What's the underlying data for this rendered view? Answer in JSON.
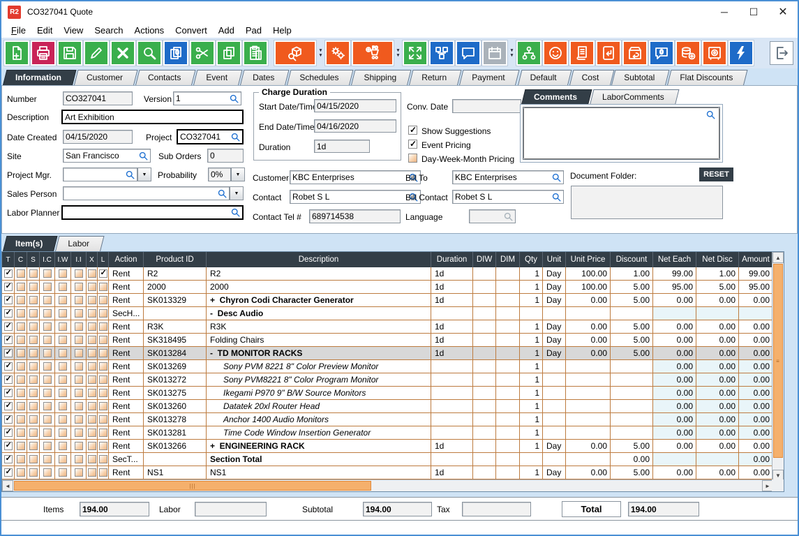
{
  "window": {
    "app_badge": "R2",
    "title": "CO327041 Quote"
  },
  "menu": {
    "items": [
      "File",
      "Edit",
      "View",
      "Search",
      "Actions",
      "Convert",
      "Add",
      "Pad",
      "Help"
    ]
  },
  "palette": {
    "green": "#3aaf4c",
    "red": "#c92458",
    "blue": "#1e6bc8",
    "orange": "#f05a1e",
    "gray": "#aab2ba",
    "header_dark": "#333e47",
    "grid_line": "#bd7b3f",
    "scroll_thumb": "#f5b06c",
    "tint_blue": "#e9f5f9",
    "selected_gray": "#d8d8d8",
    "window_border": "#4a90d5"
  },
  "toolbar": {
    "buttons": [
      {
        "icon": "new-document",
        "color": "green"
      },
      {
        "icon": "print",
        "color": "red"
      },
      {
        "icon": "save",
        "color": "green"
      },
      {
        "icon": "edit-pencil",
        "color": "green"
      },
      {
        "icon": "delete-x",
        "color": "green"
      },
      {
        "icon": "search",
        "color": "green"
      },
      {
        "icon": "copy-special",
        "color": "blue"
      },
      {
        "icon": "cut-scissors",
        "color": "green"
      },
      {
        "icon": "copy",
        "color": "green"
      },
      {
        "icon": "paste",
        "color": "green",
        "gap_after": true
      },
      {
        "icon": "search-product",
        "color": "orange",
        "wide": true,
        "dropdown_after": true
      },
      {
        "icon": "settings-gears",
        "color": "orange"
      },
      {
        "icon": "add-po-cart",
        "color": "orange",
        "wide": true,
        "dropdown_after": true
      },
      {
        "icon": "expand-arrows",
        "color": "green"
      },
      {
        "icon": "workflow",
        "color": "blue"
      },
      {
        "icon": "comment-bubble",
        "color": "blue"
      },
      {
        "icon": "calendar",
        "color": "gray",
        "disabled": true,
        "dropdown_after": true
      },
      {
        "icon": "hierarchy",
        "color": "green"
      },
      {
        "icon": "smiley",
        "color": "orange"
      },
      {
        "icon": "document-list",
        "color": "orange"
      },
      {
        "icon": "return-document",
        "color": "orange"
      },
      {
        "icon": "box-return",
        "color": "orange"
      },
      {
        "icon": "comment-zero",
        "color": "blue"
      },
      {
        "icon": "coins-add",
        "color": "orange"
      },
      {
        "icon": "safe-vault",
        "color": "orange"
      },
      {
        "icon": "lightning-bolt",
        "color": "blue"
      }
    ],
    "exit_icon": "exit-door"
  },
  "tabs": {
    "items": [
      "Information",
      "Customer",
      "Contacts",
      "Event",
      "Dates",
      "Schedules",
      "Shipping",
      "Return",
      "Payment",
      "Default",
      "Cost",
      "Subtotal",
      "Flat Discounts"
    ],
    "active": "Information"
  },
  "form": {
    "number": {
      "label": "Number",
      "value": "CO327041"
    },
    "version": {
      "label": "Version",
      "value": "1"
    },
    "description": {
      "label": "Description",
      "value": "Art Exhibition"
    },
    "date_created": {
      "label": "Date Created",
      "value": "04/15/2020"
    },
    "project": {
      "label": "Project",
      "value": "CO327041"
    },
    "site": {
      "label": "Site",
      "value": "San Francisco"
    },
    "sub_orders": {
      "label": "Sub Orders",
      "value": "0"
    },
    "project_mgr": {
      "label": "Project Mgr.",
      "value": ""
    },
    "probability": {
      "label": "Probability",
      "value": "0%"
    },
    "sales_person": {
      "label": "Sales Person",
      "value": ""
    },
    "labor_planner": {
      "label": "Labor Planner",
      "value": ""
    },
    "charge_duration": {
      "legend": "Charge Duration",
      "start": {
        "label": "Start Date/Time",
        "value": "04/15/2020"
      },
      "end": {
        "label": "End Date/Time",
        "value": "04/16/2020"
      },
      "duration": {
        "label": "Duration",
        "value": "1d"
      }
    },
    "conv_date": {
      "label": "Conv. Date",
      "value": ""
    },
    "options": [
      {
        "label": "Show Suggestions",
        "checked": true
      },
      {
        "label": "Event Pricing",
        "checked": true
      },
      {
        "label": "Day-Week-Month Pricing",
        "checked": false
      }
    ],
    "customer": {
      "label": "Customer",
      "value": "KBC Enterprises"
    },
    "bill_to": {
      "label": "Bill To",
      "value": "KBC Enterprises"
    },
    "contact": {
      "label": "Contact",
      "value": "Robet S L"
    },
    "bill_contact": {
      "label": "Bill Contact",
      "value": "Robet S L"
    },
    "contact_tel": {
      "label": "Contact Tel #",
      "value": "689714538"
    },
    "language": {
      "label": "Language",
      "value": ""
    },
    "comments_tabs": [
      "Comments",
      "LaborComments"
    ],
    "comments_text": "",
    "document_folder_label": "Document Folder:",
    "reset_label": "RESET"
  },
  "items_tabs": [
    "Item(s)",
    "Labor"
  ],
  "grid": {
    "columns": [
      "T",
      "C",
      "S",
      "I.C",
      "I.W",
      "I.I",
      "X",
      "L",
      "Action",
      "Product ID",
      "Description",
      "Duration",
      "DIW",
      "DIM",
      "Qty",
      "Unit",
      "Unit Price",
      "Discount",
      "Net Each",
      "Net Disc",
      "Amount"
    ],
    "rows": [
      {
        "t_checked": true,
        "l_checked": true,
        "action": "Rent",
        "product_id": "R2",
        "description": "R2",
        "desc_style": "normal",
        "duration": "1d",
        "qty": "1",
        "unit": "Day",
        "unit_price": "100.00",
        "discount": "1.00",
        "net_each": "99.00",
        "net_disc": "1.00",
        "amount": "99.00"
      },
      {
        "t_checked": true,
        "action": "Rent",
        "product_id": "2000",
        "description": "2000",
        "desc_style": "normal",
        "duration": "1d",
        "qty": "1",
        "unit": "Day",
        "unit_price": "100.00",
        "discount": "5.00",
        "net_each": "95.00",
        "net_disc": "5.00",
        "amount": "95.00"
      },
      {
        "t_checked": true,
        "action": "Rent",
        "product_id": "SK013329",
        "description": "+  Chyron Codi Character Generator",
        "desc_style": "bold",
        "duration": "1d",
        "qty": "1",
        "unit": "Day",
        "unit_price": "0.00",
        "discount": "5.00",
        "net_each": "0.00",
        "net_disc": "0.00",
        "amount": "0.00"
      },
      {
        "t_checked": true,
        "action": "SecH...",
        "product_id": "",
        "description": "-  Desc Audio",
        "desc_style": "bold",
        "duration": "",
        "qty": "",
        "unit": "",
        "unit_price": "",
        "discount": "",
        "net_each": "",
        "net_disc": "",
        "amount": "",
        "tint": true
      },
      {
        "t_checked": true,
        "action": "Rent",
        "product_id": "R3K",
        "description": "R3K",
        "desc_style": "normal",
        "duration": "1d",
        "qty": "1",
        "unit": "Day",
        "unit_price": "0.00",
        "discount": "5.00",
        "net_each": "0.00",
        "net_disc": "0.00",
        "amount": "0.00"
      },
      {
        "t_checked": true,
        "action": "Rent",
        "product_id": "SK318495",
        "description": "Folding Chairs",
        "desc_style": "normal",
        "duration": "1d",
        "qty": "1",
        "unit": "Day",
        "unit_price": "0.00",
        "discount": "5.00",
        "net_each": "0.00",
        "net_disc": "0.00",
        "amount": "0.00"
      },
      {
        "t_checked": true,
        "selected": true,
        "action": "Rent",
        "product_id": "SK013284",
        "description": "-  TD MONITOR RACKS",
        "desc_style": "bold",
        "duration": "1d",
        "qty": "1",
        "unit": "Day",
        "unit_price": "0.00",
        "discount": "5.00",
        "net_each": "0.00",
        "net_disc": "0.00",
        "amount": "0.00"
      },
      {
        "t_checked": true,
        "action": "Rent",
        "product_id": "SK013269",
        "description": "Sony PVM 8221 8\" Color Preview Monitor",
        "desc_style": "italic",
        "duration": "",
        "qty": "1",
        "unit": "",
        "unit_price": "",
        "discount": "",
        "net_each": "0.00",
        "net_disc": "0.00",
        "amount": "0.00",
        "tint": true
      },
      {
        "t_checked": true,
        "action": "Rent",
        "product_id": "SK013272",
        "description": "Sony PVM8221 8\" Color Program Monitor",
        "desc_style": "italic",
        "duration": "",
        "qty": "1",
        "unit": "",
        "unit_price": "",
        "discount": "",
        "net_each": "0.00",
        "net_disc": "0.00",
        "amount": "0.00",
        "tint": true
      },
      {
        "t_checked": true,
        "action": "Rent",
        "product_id": "SK013275",
        "description": "Ikegami P970 9\" B/W Source Monitors",
        "desc_style": "italic",
        "duration": "",
        "qty": "1",
        "unit": "",
        "unit_price": "",
        "discount": "",
        "net_each": "0.00",
        "net_disc": "0.00",
        "amount": "0.00",
        "tint": true
      },
      {
        "t_checked": true,
        "action": "Rent",
        "product_id": "SK013260",
        "description": "Datatek 20xl Router Head",
        "desc_style": "italic",
        "duration": "",
        "qty": "1",
        "unit": "",
        "unit_price": "",
        "discount": "",
        "net_each": "0.00",
        "net_disc": "0.00",
        "amount": "0.00",
        "tint": true
      },
      {
        "t_checked": true,
        "action": "Rent",
        "product_id": "SK013278",
        "description": "Anchor 1400 Audio Monitors",
        "desc_style": "italic",
        "duration": "",
        "qty": "1",
        "unit": "",
        "unit_price": "",
        "discount": "",
        "net_each": "0.00",
        "net_disc": "0.00",
        "amount": "0.00",
        "tint": true
      },
      {
        "t_checked": true,
        "action": "Rent",
        "product_id": "SK013281",
        "description": "Time Code Window Insertion Generator",
        "desc_style": "italic",
        "duration": "",
        "qty": "1",
        "unit": "",
        "unit_price": "",
        "discount": "",
        "net_each": "0.00",
        "net_disc": "0.00",
        "amount": "0.00",
        "tint": true
      },
      {
        "t_checked": true,
        "action": "Rent",
        "product_id": "SK013266",
        "description": "+  ENGINEERING RACK",
        "desc_style": "bold",
        "duration": "1d",
        "qty": "1",
        "unit": "Day",
        "unit_price": "0.00",
        "discount": "5.00",
        "net_each": "0.00",
        "net_disc": "0.00",
        "amount": "0.00"
      },
      {
        "t_checked": true,
        "action": "SecT...",
        "product_id": "",
        "description": "Section Total",
        "desc_style": "bold",
        "duration": "",
        "qty": "",
        "unit": "",
        "unit_price": "",
        "discount": "0.00",
        "net_each": "",
        "net_disc": "",
        "amount": "0.00",
        "tint": true
      },
      {
        "t_checked": true,
        "action": "Rent",
        "product_id": "NS1",
        "description": "NS1",
        "desc_style": "normal",
        "duration": "1d",
        "qty": "1",
        "unit": "Day",
        "unit_price": "0.00",
        "discount": "5.00",
        "net_each": "0.00",
        "net_disc": "0.00",
        "amount": "0.00"
      }
    ]
  },
  "totals": {
    "items_label": "Items",
    "items_value": "194.00",
    "labor_label": "Labor",
    "labor_value": "",
    "subtotal_label": "Subtotal",
    "subtotal_value": "194.00",
    "tax_label": "Tax",
    "tax_value": "",
    "total_label": "Total",
    "total_value": "194.00"
  }
}
